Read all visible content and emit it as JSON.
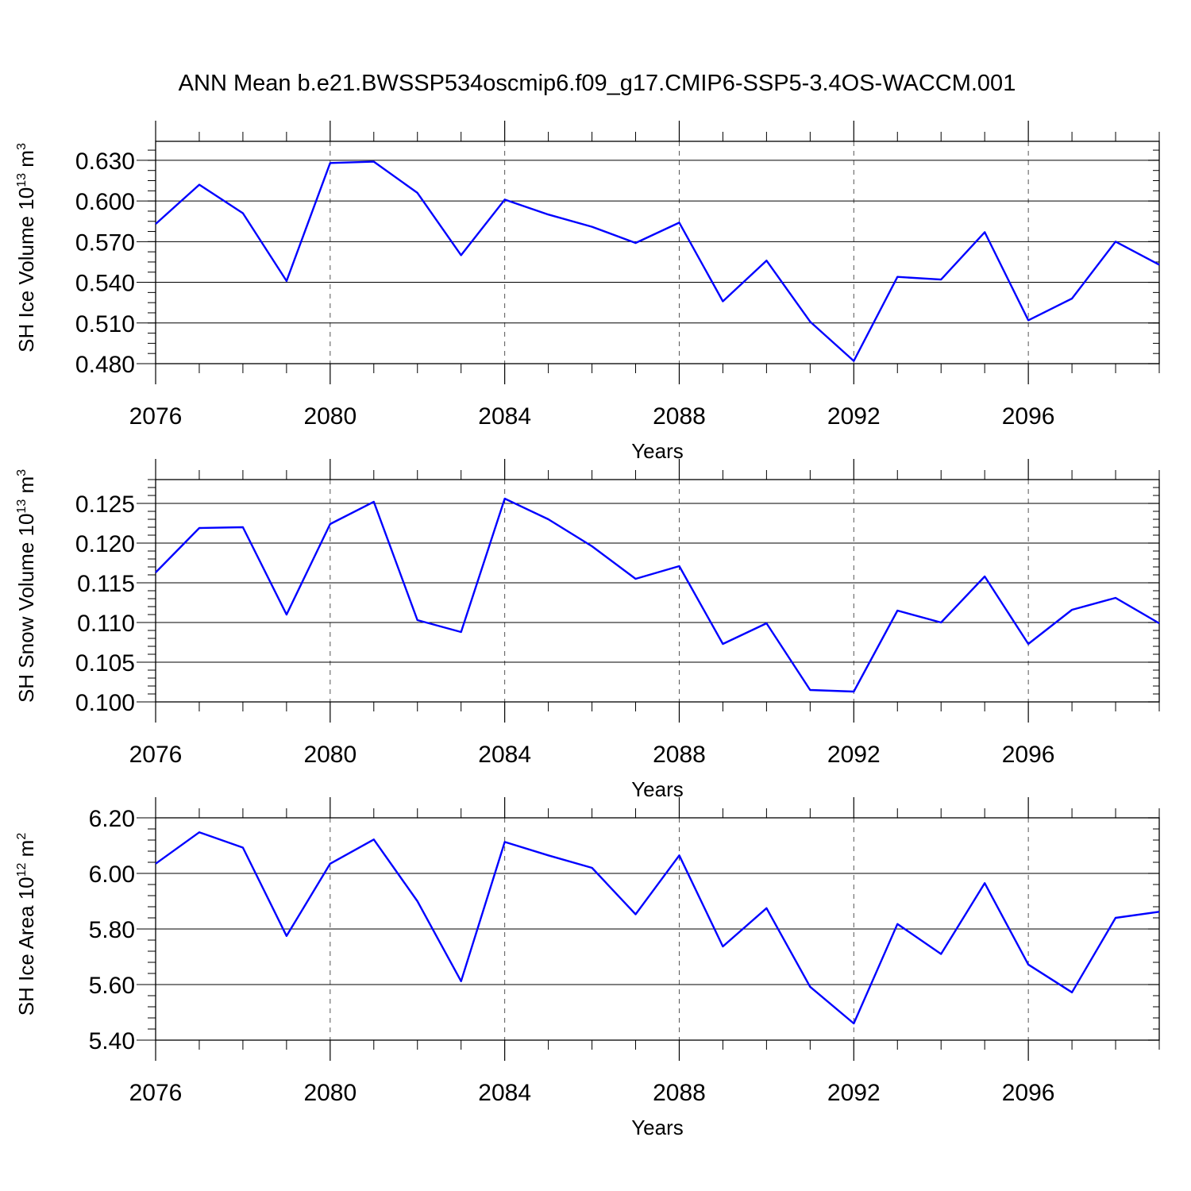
{
  "figure": {
    "title": "ANN Mean b.e21.BWSSP534oscmip6.f09_g17.CMIP6-SSP5-3.4OS-WACCM.001"
  },
  "chart_data": [
    {
      "type": "line",
      "title": "",
      "xlabel": "Years",
      "ylabel": "SH Ice Volume 10",
      "ylabel_exp": "13",
      "ylabel_unit": " m",
      "ylabel_unit_exp": "3",
      "xlim": [
        2076,
        2099
      ],
      "ylim": [
        0.48,
        0.644
      ],
      "yticks": [
        0.48,
        0.51,
        0.54,
        0.57,
        0.6,
        0.63
      ],
      "ytick_labels": [
        "0.480",
        "0.510",
        "0.540",
        "0.570",
        "0.600",
        "0.630"
      ],
      "yminor_step": 0.0075,
      "xticks": [
        2076,
        2080,
        2084,
        2088,
        2092,
        2096
      ],
      "xtick_labels": [
        "2076",
        "2080",
        "2084",
        "2088",
        "2092",
        "2096"
      ],
      "grid": "vertical dashed at labeled years",
      "line_color": "#0000ff",
      "x": [
        2076,
        2077,
        2078,
        2079,
        2080,
        2081,
        2082,
        2083,
        2084,
        2085,
        2086,
        2087,
        2088,
        2089,
        2090,
        2091,
        2092,
        2093,
        2094,
        2095,
        2096,
        2097,
        2098,
        2099
      ],
      "series": [
        {
          "values": [
            0.583,
            0.612,
            0.591,
            0.541,
            0.628,
            0.629,
            0.606,
            0.56,
            0.601,
            0.59,
            0.581,
            0.569,
            0.584,
            0.526,
            0.556,
            0.511,
            0.482,
            0.544,
            0.542,
            0.577,
            0.512,
            0.528,
            0.57,
            0.553
          ]
        }
      ]
    },
    {
      "type": "line",
      "title": "",
      "xlabel": "Years",
      "ylabel": "SH Snow Volume 10",
      "ylabel_exp": "13",
      "ylabel_unit": " m",
      "ylabel_unit_exp": "3",
      "xlim": [
        2076,
        2099
      ],
      "ylim": [
        0.1,
        0.128
      ],
      "yticks": [
        0.1,
        0.105,
        0.11,
        0.115,
        0.12,
        0.125
      ],
      "ytick_labels": [
        "0.100",
        "0.105",
        "0.110",
        "0.115",
        "0.120",
        "0.125"
      ],
      "yminor_step": 0.001,
      "xticks": [
        2076,
        2080,
        2084,
        2088,
        2092,
        2096
      ],
      "xtick_labels": [
        "2076",
        "2080",
        "2084",
        "2088",
        "2092",
        "2096"
      ],
      "grid": "vertical dashed at labeled years",
      "line_color": "#0000ff",
      "x": [
        2076,
        2077,
        2078,
        2079,
        2080,
        2081,
        2082,
        2083,
        2084,
        2085,
        2086,
        2087,
        2088,
        2089,
        2090,
        2091,
        2092,
        2093,
        2094,
        2095,
        2096,
        2097,
        2098,
        2099
      ],
      "series": [
        {
          "values": [
            0.1163,
            0.1219,
            0.122,
            0.111,
            0.1224,
            0.1252,
            0.1103,
            0.1088,
            0.1256,
            0.123,
            0.1196,
            0.1155,
            0.1171,
            0.1073,
            0.1099,
            0.1015,
            0.1013,
            0.1115,
            0.11,
            0.1158,
            0.1073,
            0.1116,
            0.1131,
            0.1099
          ]
        }
      ]
    },
    {
      "type": "line",
      "title": "",
      "xlabel": "Years",
      "ylabel": "SH Ice Area 10",
      "ylabel_exp": "12",
      "ylabel_unit": " m",
      "ylabel_unit_exp": "2",
      "xlim": [
        2076,
        2099
      ],
      "ylim": [
        5.4,
        6.2
      ],
      "yticks": [
        5.4,
        5.6,
        5.8,
        6.0,
        6.2
      ],
      "ytick_labels": [
        "5.40",
        "5.60",
        "5.80",
        "6.00",
        "6.20"
      ],
      "yminor_step": 0.04,
      "xticks": [
        2076,
        2080,
        2084,
        2088,
        2092,
        2096
      ],
      "xtick_labels": [
        "2076",
        "2080",
        "2084",
        "2088",
        "2092",
        "2096"
      ],
      "grid": "vertical dashed at labeled years",
      "line_color": "#0000ff",
      "x": [
        2076,
        2077,
        2078,
        2079,
        2080,
        2081,
        2082,
        2083,
        2084,
        2085,
        2086,
        2087,
        2088,
        2089,
        2090,
        2091,
        2092,
        2093,
        2094,
        2095,
        2096,
        2097,
        2098,
        2099
      ],
      "series": [
        {
          "values": [
            6.035,
            6.148,
            6.093,
            5.775,
            6.035,
            6.122,
            5.9,
            5.612,
            6.113,
            6.065,
            6.02,
            5.853,
            6.065,
            5.737,
            5.875,
            5.592,
            5.46,
            5.818,
            5.71,
            5.965,
            5.672,
            5.572,
            5.84,
            5.862
          ]
        }
      ]
    }
  ]
}
